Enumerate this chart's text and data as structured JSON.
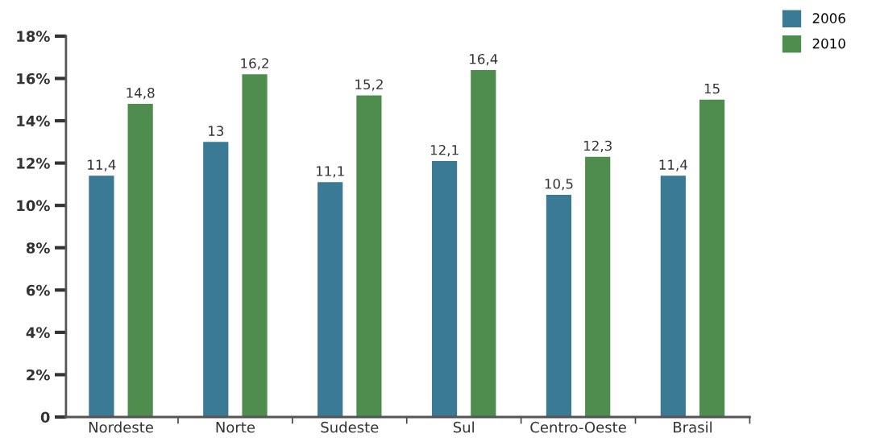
{
  "chart_data": {
    "type": "bar",
    "categories": [
      "Nordeste",
      "Norte",
      "Sudeste",
      "Sul",
      "Centro-Oeste",
      "Brasil"
    ],
    "series": [
      {
        "name": "2006",
        "color": "#3b7a94",
        "values": [
          11.4,
          13,
          11.1,
          12.1,
          10.5,
          11.4
        ],
        "value_labels": [
          "11,4",
          "13",
          "11,1",
          "12,1",
          "10,5",
          "11,4"
        ]
      },
      {
        "name": "2010",
        "color": "#4f8d4f",
        "values": [
          14.8,
          16.2,
          15.2,
          16.4,
          12.3,
          15
        ],
        "value_labels": [
          "14,8",
          "16,2",
          "15,2",
          "16,4",
          "12,3",
          "15"
        ]
      }
    ],
    "ylim": [
      0,
      18
    ],
    "yticks": [
      0,
      {
        "value": 2,
        "label": "2%"
      },
      {
        "value": 4,
        "label": "4%"
      },
      {
        "value": 6,
        "label": "6%"
      },
      {
        "value": 8,
        "label": "8%"
      },
      {
        "value": 10,
        "label": "10%"
      },
      {
        "value": 12,
        "label": "12%"
      },
      {
        "value": 14,
        "label": "14%"
      },
      {
        "value": 16,
        "label": "16%"
      },
      {
        "value": 18,
        "label": "18%"
      }
    ],
    "grid": false,
    "legend": "top right"
  }
}
